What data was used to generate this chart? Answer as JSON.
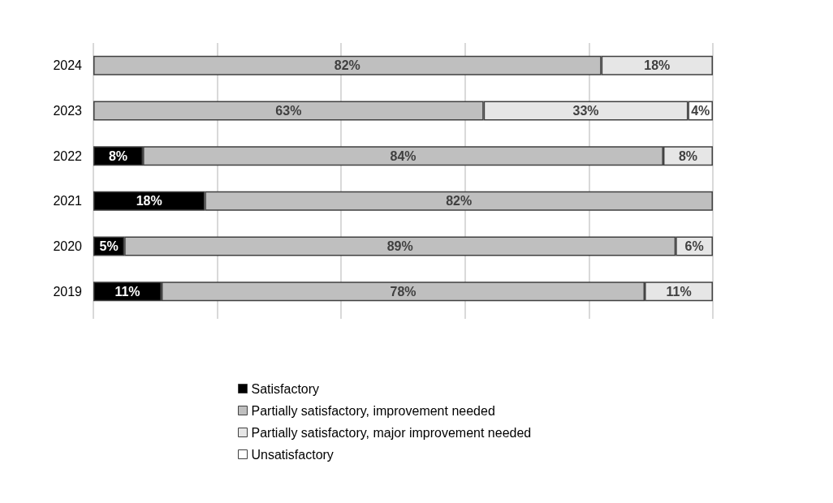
{
  "chart_data": {
    "type": "bar",
    "orientation": "horizontal",
    "stacked": true,
    "categories": [
      "2024",
      "2023",
      "2022",
      "2021",
      "2020",
      "2019"
    ],
    "series": [
      {
        "name": "Satisfactory",
        "color": "#000000",
        "values": [
          null,
          null,
          8,
          18,
          5,
          11
        ],
        "value_labels": [
          null,
          null,
          "8%",
          "18%",
          "5%",
          "11%"
        ]
      },
      {
        "name": "Partially satisfactory, improvement needed",
        "color": "#bfbfbf",
        "values": [
          82,
          63,
          84,
          82,
          89,
          78
        ],
        "value_labels": [
          "82%",
          "63%",
          "84%",
          "82%",
          "89%",
          "78%"
        ]
      },
      {
        "name": "Partially satisfactory, major improvement needed",
        "color": "#e6e6e6",
        "values": [
          18,
          33,
          8,
          null,
          6,
          11
        ],
        "value_labels": [
          "18%",
          "33%",
          "8%",
          null,
          "6%",
          "11%"
        ]
      },
      {
        "name": "Unsatisfactory",
        "color": "#ffffff",
        "values": [
          null,
          4,
          null,
          null,
          null,
          null
        ],
        "value_labels": [
          null,
          "4%",
          null,
          null,
          null,
          null
        ]
      }
    ],
    "tick_labels": "y",
    "grid": "x",
    "legend": "bottom"
  }
}
